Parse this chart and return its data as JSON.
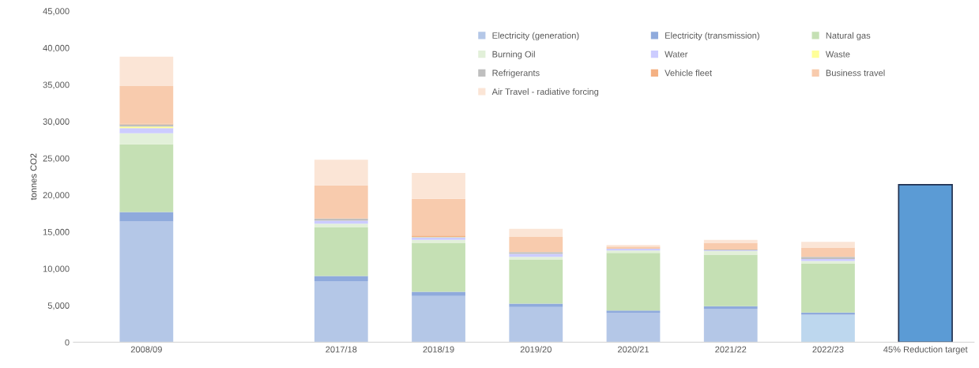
{
  "chart_data": {
    "type": "bar",
    "stacked": true,
    "ylabel": "tonnes CO2",
    "legend": "top right",
    "grid": false,
    "categories": [
      "2008/09",
      null,
      "2017/18",
      "2018/19",
      "2019/20",
      "2020/21",
      "2021/22",
      "2022/23",
      "45% Reduction target"
    ],
    "ylim": [
      0,
      45000
    ],
    "yticks": [
      0,
      {
        "value": 5000,
        "label": "5,000"
      },
      {
        "value": 10000,
        "label": "10,000"
      },
      {
        "value": 15000,
        "label": "15,000"
      },
      {
        "value": 20000,
        "label": "20,000"
      },
      {
        "value": 25000,
        "label": "25,000"
      },
      {
        "value": 30000,
        "label": "30,000"
      },
      {
        "value": 35000,
        "label": "35,000"
      },
      {
        "value": 40000,
        "label": "40,000"
      },
      {
        "value": 45000,
        "label": "45,000"
      }
    ],
    "series": [
      {
        "name": "Electricity (generation)",
        "color": "#b4c7e7",
        "colors": [
          "#b4c7e7",
          "#b4c7e7",
          "#b4c7e7",
          "#b4c7e7",
          "#b4c7e7",
          "#b4c7e7",
          "#b4c7e7",
          "#bdd7ee",
          "#b4c7e7"
        ],
        "values": [
          16400,
          null,
          8300,
          6300,
          4800,
          3950,
          4550,
          3750,
          null
        ]
      },
      {
        "name": "Electricity (transmission)",
        "color": "#8faadc",
        "values": [
          1300,
          null,
          700,
          550,
          450,
          350,
          350,
          300,
          null
        ]
      },
      {
        "name": "Natural gas",
        "color": "#c5e0b4",
        "values": [
          9200,
          null,
          6600,
          6650,
          6000,
          7850,
          7000,
          6600,
          null
        ]
      },
      {
        "name": "Burning Oil",
        "color": "#e2f0d9",
        "values": [
          1500,
          null,
          500,
          400,
          350,
          300,
          500,
          400,
          null
        ]
      },
      {
        "name": "Water",
        "color": "#ccccff",
        "values": [
          700,
          null,
          400,
          300,
          400,
          250,
          100,
          250,
          null
        ]
      },
      {
        "name": "Waste",
        "color": "#ffff99",
        "values": [
          200,
          null,
          null,
          50,
          null,
          null,
          null,
          null,
          null
        ]
      },
      {
        "name": "Refrigerants",
        "color": "#bfbfbf",
        "values": [
          300,
          null,
          300,
          50,
          250,
          null,
          100,
          300,
          null
        ]
      },
      {
        "name": "Vehicle fleet",
        "color": "#f4b183",
        "values": [
          100,
          null,
          null,
          200,
          null,
          null,
          null,
          null,
          null
        ]
      },
      {
        "name": "Business travel",
        "color": "#f8cbad",
        "values": [
          5100,
          null,
          4500,
          5000,
          2050,
          300,
          900,
          1250,
          null
        ]
      },
      {
        "name": "Air Travel - radiative forcing",
        "color": "#fbe5d6",
        "values": [
          4000,
          null,
          3500,
          3500,
          1100,
          200,
          400,
          800,
          null
        ]
      },
      {
        "color": "#5b9bd5",
        "values": [
          null,
          null,
          null,
          null,
          null,
          null,
          null,
          null,
          21400
        ]
      }
    ]
  }
}
